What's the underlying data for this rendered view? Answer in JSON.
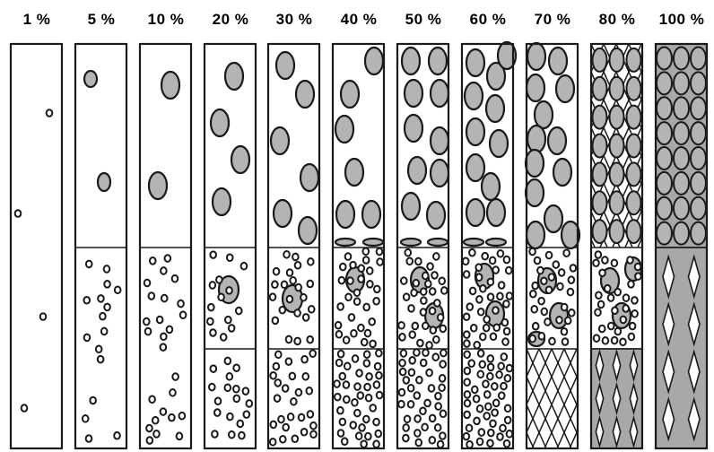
{
  "diagram": {
    "columns": [
      {
        "label": "1 %",
        "fraction": 0.01
      },
      {
        "label": "5 %",
        "fraction": 0.05
      },
      {
        "label": "10 %",
        "fraction": 0.1
      },
      {
        "label": "20 %",
        "fraction": 0.2
      },
      {
        "label": "30 %",
        "fraction": 0.3
      },
      {
        "label": "40 %",
        "fraction": 0.4
      },
      {
        "label": "50 %",
        "fraction": 0.5
      },
      {
        "label": "60 %",
        "fraction": 0.6
      },
      {
        "label": "70 %",
        "fraction": 0.7
      },
      {
        "label": "80 %",
        "fraction": 0.8
      },
      {
        "label": "100 %",
        "fraction": 1.0
      }
    ],
    "colors": {
      "outline": "#1a1a1a",
      "bubble_fill": "#b4b4b4",
      "packed_fill": "#a8a8a8",
      "background": "#ffffff"
    }
  }
}
